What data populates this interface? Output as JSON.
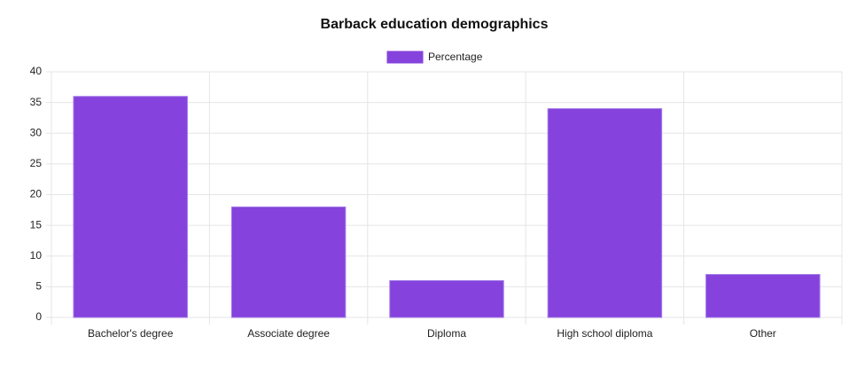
{
  "chart_data": {
    "type": "bar",
    "title": "Barback education demographics",
    "categories": [
      "Bachelor's degree",
      "Associate degree",
      "Diploma",
      "High school diploma",
      "Other"
    ],
    "series": [
      {
        "name": "Percentage",
        "color": "#8542dc",
        "values": [
          36,
          18,
          6,
          34,
          7
        ]
      }
    ],
    "ylim": [
      0,
      40
    ],
    "yticks": [
      0,
      5,
      10,
      15,
      20,
      25,
      30,
      35,
      40
    ],
    "grid": true,
    "legend": "top"
  }
}
